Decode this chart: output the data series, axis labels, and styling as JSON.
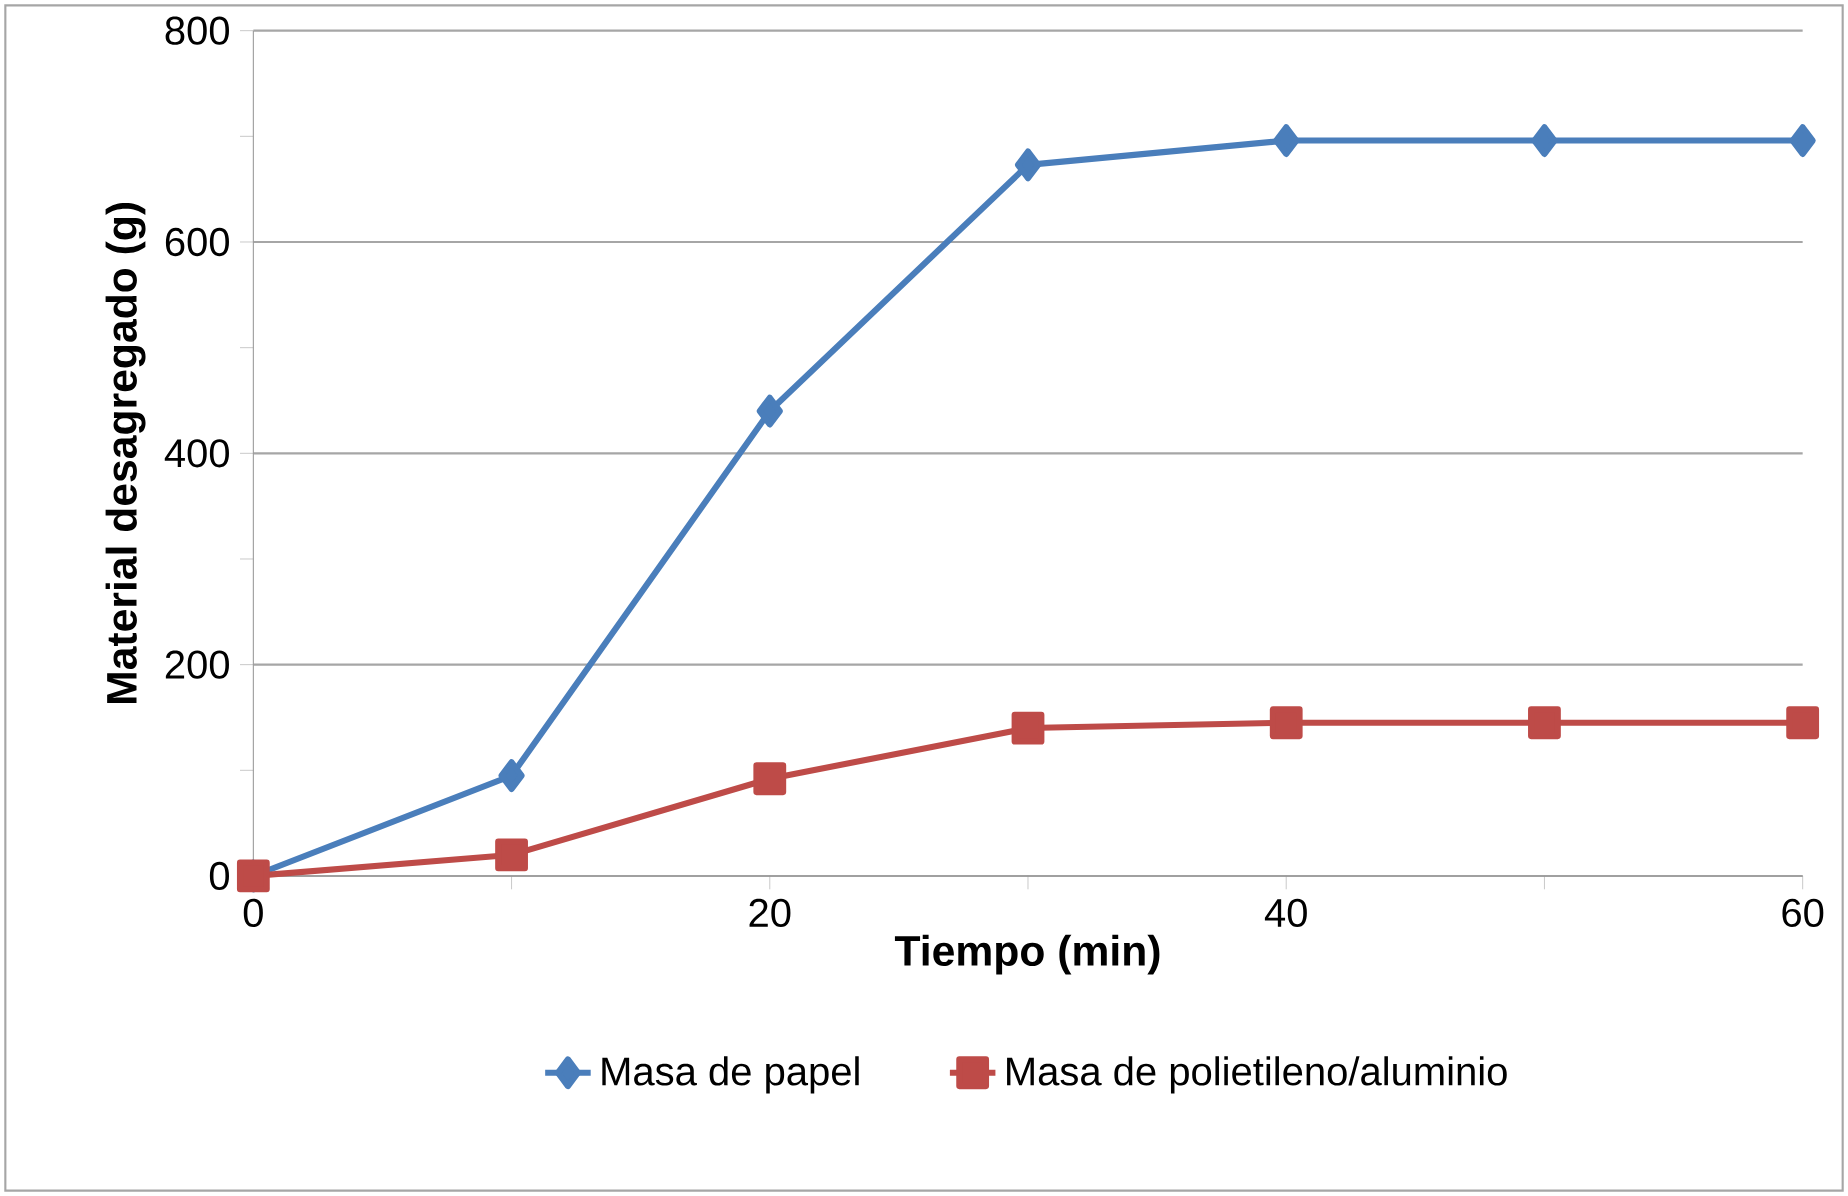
{
  "chart_data": {
    "type": "line",
    "xlabel": "Tiempo (min)",
    "ylabel": "Material desagregado (g)",
    "x": [
      0,
      10,
      20,
      30,
      40,
      50,
      60
    ],
    "series": [
      {
        "name": "Masa de papel",
        "color": "#4a7ebb",
        "marker": "diamond",
        "values": [
          0,
          95,
          440,
          673,
          696,
          696,
          696
        ]
      },
      {
        "name": "Masa de polietileno/aluminio",
        "color": "#be4b48",
        "marker": "square",
        "values": [
          0,
          20,
          92,
          140,
          145,
          145,
          145
        ]
      }
    ],
    "xlim": [
      0,
      60
    ],
    "xticks": [
      0,
      20,
      40,
      60
    ],
    "ylim": [
      0,
      800
    ],
    "yticks": [
      0,
      200,
      400,
      600,
      800
    ],
    "grid": "y",
    "legend": "bottom",
    "line_style": "solid"
  }
}
